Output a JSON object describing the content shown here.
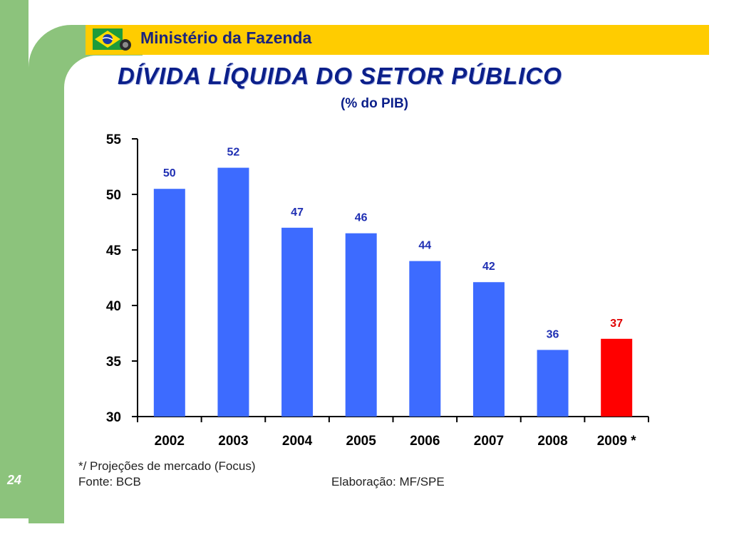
{
  "header": {
    "ministry": "Ministério da Fazenda",
    "title": "DÍVIDA LÍQUIDA DO SETOR PÚBLICO",
    "subtitle": "(% do PIB)"
  },
  "footer": {
    "footnote": "*/ Projeções de mercado (Focus)",
    "source": "Fonte: BCB",
    "credit": "Elaboração: MF/SPE",
    "page_number": "24"
  },
  "colors": {
    "bar": "#3d6bff",
    "bar_highlight": "#ff0000",
    "label": "#1f2fb3",
    "label_highlight": "#e00000",
    "green": "#8cc37c",
    "yellow": "#ffcc00"
  },
  "chart_data": {
    "type": "bar",
    "title": "DÍVIDA LÍQUIDA DO SETOR PÚBLICO",
    "subtitle": "(% do PIB)",
    "categories": [
      "2002",
      "2003",
      "2004",
      "2005",
      "2006",
      "2007",
      "2008",
      "2009 *"
    ],
    "values": [
      50.5,
      52.4,
      47.0,
      46.5,
      44.0,
      42.1,
      36.0,
      37.0
    ],
    "labels": [
      "50",
      "52",
      "47",
      "46",
      "44",
      "42",
      "36",
      "37"
    ],
    "highlight": [
      false,
      false,
      false,
      false,
      false,
      false,
      false,
      true
    ],
    "ylim": [
      30,
      55
    ],
    "yticks": [
      30,
      35,
      40,
      45,
      50,
      55
    ],
    "grid": false,
    "legend": false
  }
}
